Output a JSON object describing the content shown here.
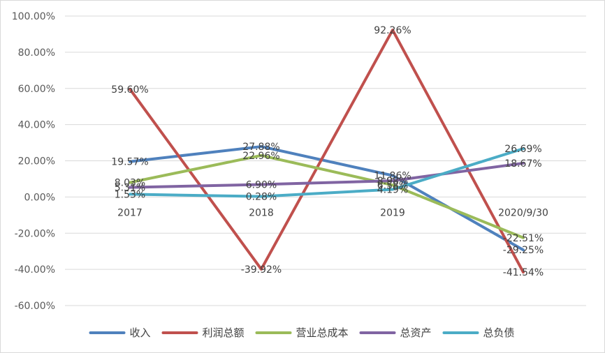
{
  "chart_data": {
    "type": "line",
    "categories": [
      "2017",
      "2018",
      "2019",
      "2020/9/30"
    ],
    "ylim": [
      -60,
      100
    ],
    "ytick_values": [
      100,
      80,
      60,
      40,
      20,
      0,
      -20,
      -40,
      -60
    ],
    "ytick_labels": [
      "100.00%",
      "80.00%",
      "60.00%",
      "40.00%",
      "20.00%",
      "0.00%",
      "-20.00%",
      "-40.00%",
      "-60.00%"
    ],
    "grid": true,
    "legend_position": "bottom",
    "series": [
      {
        "name": "收入",
        "color": "#4F81BD",
        "values": [
          19.57,
          27.88,
          11.86,
          -29.25
        ],
        "labels": [
          "19.57%",
          "27.88%",
          "11.86%",
          "-29.25%"
        ]
      },
      {
        "name": "利润总额",
        "color": "#C0504D",
        "values": [
          59.6,
          -39.92,
          92.26,
          -41.54
        ],
        "labels": [
          "59.60%",
          "-39.92%",
          "92.26%",
          "-41.54%"
        ]
      },
      {
        "name": "营业总成本",
        "color": "#9BBB59",
        "values": [
          8.03,
          22.96,
          6.58,
          -22.51
        ],
        "labels": [
          "8.03%",
          "22.96%",
          "6.58%",
          "-22.51%"
        ]
      },
      {
        "name": "总资产",
        "color": "#8064A2",
        "values": [
          5.31,
          6.9,
          8.98,
          18.67
        ],
        "labels": [
          "5.31%",
          "6.90%",
          "8.98%",
          "18.67%"
        ]
      },
      {
        "name": "总负债",
        "color": "#4BACC6",
        "values": [
          1.53,
          0.28,
          4.19,
          26.69
        ],
        "labels": [
          "1.53%",
          "0.28%",
          "4.19%",
          "26.69%"
        ]
      }
    ]
  }
}
